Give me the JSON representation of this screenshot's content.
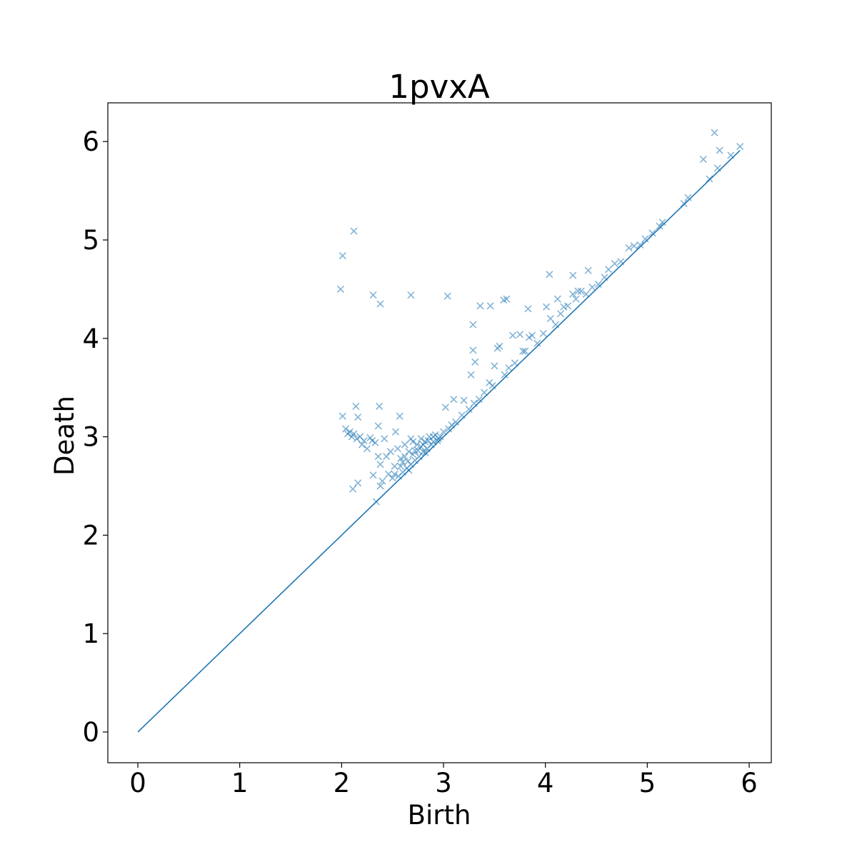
{
  "chart_data": {
    "type": "scatter",
    "title": "1pvxA",
    "xlabel": "Birth",
    "ylabel": "Death",
    "xlim": [
      -0.3,
      6.2
    ],
    "ylim": [
      -0.3,
      6.4
    ],
    "xticks": [
      "0",
      "1",
      "2",
      "3",
      "4",
      "5",
      "6"
    ],
    "yticks": [
      "0",
      "1",
      "2",
      "3",
      "4",
      "5",
      "6"
    ],
    "grid": false,
    "color": "#1f77b4",
    "diagonal": {
      "from": [
        0,
        0
      ],
      "to": [
        5.91,
        5.91
      ]
    },
    "points": [
      [
        1.99,
        4.5
      ],
      [
        2.01,
        4.84
      ],
      [
        2.12,
        5.09
      ],
      [
        2.31,
        4.44
      ],
      [
        2.38,
        4.35
      ],
      [
        2.68,
        4.44
      ],
      [
        3.04,
        4.43
      ],
      [
        3.29,
        4.14
      ],
      [
        3.36,
        4.33
      ],
      [
        3.46,
        4.33
      ],
      [
        3.59,
        4.39
      ],
      [
        3.62,
        4.4
      ],
      [
        3.83,
        4.3
      ],
      [
        4.04,
        4.65
      ],
      [
        4.27,
        4.64
      ],
      [
        4.42,
        4.69
      ],
      [
        5.66,
        6.09
      ],
      [
        5.55,
        5.82
      ],
      [
        5.71,
        5.91
      ],
      [
        5.91,
        5.95
      ],
      [
        5.69,
        5.73
      ],
      [
        5.61,
        5.62
      ],
      [
        5.82,
        5.86
      ],
      [
        5.4,
        5.43
      ],
      [
        5.36,
        5.37
      ],
      [
        5.15,
        5.18
      ],
      [
        5.12,
        5.14
      ],
      [
        5.05,
        5.07
      ],
      [
        4.98,
        5.01
      ],
      [
        4.93,
        4.95
      ],
      [
        4.87,
        4.94
      ],
      [
        4.82,
        4.92
      ],
      [
        4.74,
        4.78
      ],
      [
        4.68,
        4.76
      ],
      [
        4.62,
        4.7
      ],
      [
        4.58,
        4.62
      ],
      [
        4.52,
        4.55
      ],
      [
        4.46,
        4.52
      ],
      [
        4.4,
        4.45
      ],
      [
        4.35,
        4.48
      ],
      [
        4.32,
        4.48
      ],
      [
        4.3,
        4.4
      ],
      [
        4.27,
        4.45
      ],
      [
        4.22,
        4.33
      ],
      [
        4.18,
        4.32
      ],
      [
        4.15,
        4.25
      ],
      [
        4.12,
        4.4
      ],
      [
        4.1,
        4.14
      ],
      [
        4.05,
        4.2
      ],
      [
        4.01,
        4.32
      ],
      [
        3.98,
        4.05
      ],
      [
        3.92,
        3.95
      ],
      [
        3.87,
        4.03
      ],
      [
        3.84,
        4.01
      ],
      [
        3.8,
        3.87
      ],
      [
        3.78,
        3.87
      ],
      [
        3.75,
        4.04
      ],
      [
        3.7,
        3.75
      ],
      [
        3.68,
        4.03
      ],
      [
        3.64,
        3.7
      ],
      [
        3.6,
        3.63
      ],
      [
        3.55,
        3.92
      ],
      [
        3.53,
        3.9
      ],
      [
        3.5,
        3.72
      ],
      [
        3.48,
        3.52
      ],
      [
        3.45,
        3.55
      ],
      [
        3.4,
        3.45
      ],
      [
        3.35,
        3.38
      ],
      [
        3.31,
        3.76
      ],
      [
        3.29,
        3.88
      ],
      [
        3.27,
        3.63
      ],
      [
        3.3,
        3.34
      ],
      [
        3.25,
        3.28
      ],
      [
        3.2,
        3.37
      ],
      [
        3.18,
        3.22
      ],
      [
        3.12,
        3.15
      ],
      [
        3.1,
        3.38
      ],
      [
        3.08,
        3.12
      ],
      [
        3.05,
        3.08
      ],
      [
        3.02,
        3.3
      ],
      [
        3.0,
        3.05
      ],
      [
        2.97,
        3.0
      ],
      [
        2.95,
        2.98
      ],
      [
        2.92,
        3.02
      ],
      [
        2.9,
        2.95
      ],
      [
        2.88,
        2.92
      ],
      [
        2.86,
        3.0
      ],
      [
        2.84,
        2.88
      ],
      [
        2.82,
        2.95
      ],
      [
        2.8,
        2.85
      ],
      [
        2.78,
        2.98
      ],
      [
        2.76,
        2.8
      ],
      [
        2.74,
        2.92
      ],
      [
        2.72,
        2.76
      ],
      [
        2.7,
        2.95
      ],
      [
        2.68,
        2.72
      ],
      [
        2.66,
        2.85
      ],
      [
        2.64,
        2.68
      ],
      [
        2.62,
        2.92
      ],
      [
        2.6,
        2.64
      ],
      [
        2.58,
        2.78
      ],
      [
        2.56,
        2.6
      ],
      [
        2.55,
        2.88
      ],
      [
        2.53,
        3.05
      ],
      [
        2.52,
        2.7
      ],
      [
        2.5,
        2.58
      ],
      [
        2.48,
        2.85
      ],
      [
        2.46,
        2.62
      ],
      [
        2.44,
        2.8
      ],
      [
        2.42,
        2.98
      ],
      [
        2.4,
        2.55
      ],
      [
        2.38,
        2.72
      ],
      [
        2.36,
        2.8
      ],
      [
        2.34,
        2.34
      ],
      [
        2.38,
        2.5
      ],
      [
        2.31,
        2.61
      ],
      [
        2.36,
        3.11
      ],
      [
        2.57,
        3.21
      ],
      [
        2.37,
        3.31
      ],
      [
        2.16,
        3.2
      ],
      [
        2.14,
        3.31
      ],
      [
        2.01,
        3.21
      ],
      [
        2.11,
        2.47
      ],
      [
        2.16,
        2.53
      ],
      [
        2.04,
        3.08
      ],
      [
        2.06,
        3.03
      ],
      [
        2.08,
        3.05
      ],
      [
        2.1,
        3.0
      ],
      [
        2.12,
        3.03
      ],
      [
        2.15,
        2.98
      ],
      [
        2.18,
        3.0
      ],
      [
        2.2,
        2.92
      ],
      [
        2.22,
        2.96
      ],
      [
        2.25,
        2.88
      ],
      [
        2.28,
        2.99
      ],
      [
        2.3,
        2.96
      ],
      [
        2.33,
        2.94
      ],
      [
        2.62,
        2.8
      ],
      [
        2.7,
        2.82
      ],
      [
        2.75,
        2.86
      ],
      [
        2.8,
        2.92
      ],
      [
        2.85,
        2.96
      ],
      [
        2.58,
        2.7
      ],
      [
        2.65,
        2.75
      ],
      [
        2.72,
        2.86
      ],
      [
        2.78,
        2.9
      ],
      [
        2.68,
        2.98
      ],
      [
        2.9,
        3.0
      ],
      [
        2.94,
        2.96
      ],
      [
        2.52,
        2.62
      ],
      [
        2.6,
        2.74
      ],
      [
        2.66,
        2.66
      ],
      [
        2.82,
        2.84
      ]
    ]
  }
}
